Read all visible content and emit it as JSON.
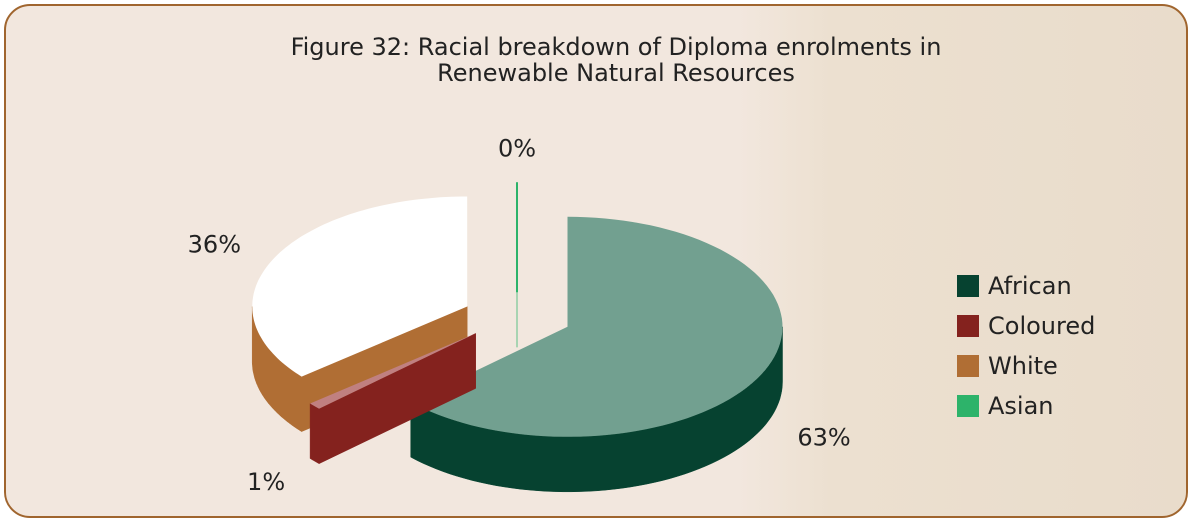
{
  "chart_data": {
    "type": "pie3d",
    "title": "Figure 32: Racial breakdown of Diploma enrolments in Renewable Natural Resources",
    "categories": [
      "African",
      "Coloured",
      "White",
      "Asian"
    ],
    "values": [
      63,
      1,
      36,
      0
    ],
    "value_labels": [
      "63%",
      "1%",
      "36%",
      "0%"
    ],
    "colors": [
      "#064230",
      "#84221e",
      "#b06e34",
      "#2db36a"
    ],
    "top_colors": [
      "#72a090",
      "#c08080",
      "#ffffff",
      "#2db36a"
    ],
    "legend": "right"
  }
}
